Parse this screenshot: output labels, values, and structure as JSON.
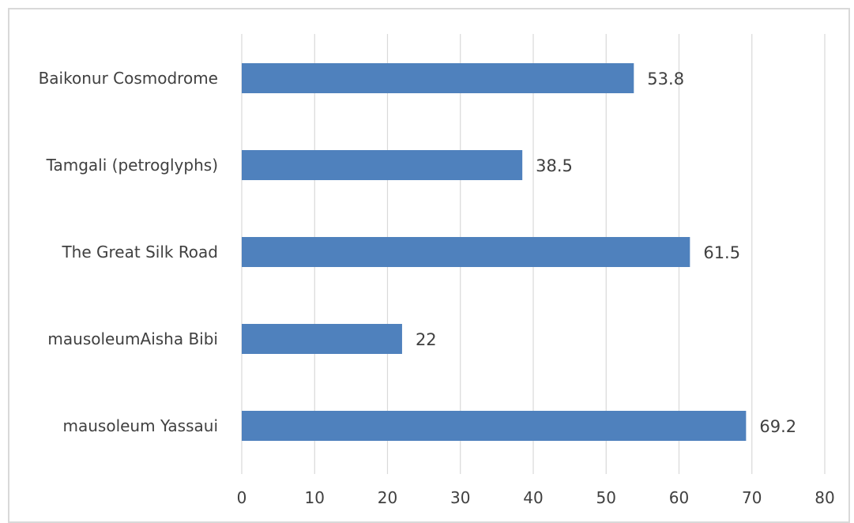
{
  "chart_data": {
    "type": "bar",
    "orientation": "horizontal",
    "title": "",
    "xlabel": "",
    "ylabel": "",
    "categories": [
      "Baikonur Cosmodrome",
      "Tamgali (petroglyphs)",
      "The Great Silk Road",
      "mausoleumAisha Bibi",
      "mausoleum Yassaui"
    ],
    "values": [
      53.8,
      38.5,
      61.5,
      22,
      69.2
    ],
    "value_labels": [
      "53.8",
      "38.5",
      "61.5",
      "22",
      "69.2"
    ],
    "xlim": [
      0,
      80
    ],
    "ticks": [
      0,
      10,
      20,
      30,
      40,
      50,
      60,
      70,
      80
    ],
    "tick_labels": [
      "0",
      "10",
      "20",
      "30",
      "40",
      "50",
      "60",
      "70",
      "80"
    ],
    "grid": "vertical",
    "legend": "none",
    "colors": {
      "bar": "#4f81bd",
      "grid": "#d9d9d9",
      "text": "#404040",
      "frame": "#d9d9d9"
    }
  }
}
